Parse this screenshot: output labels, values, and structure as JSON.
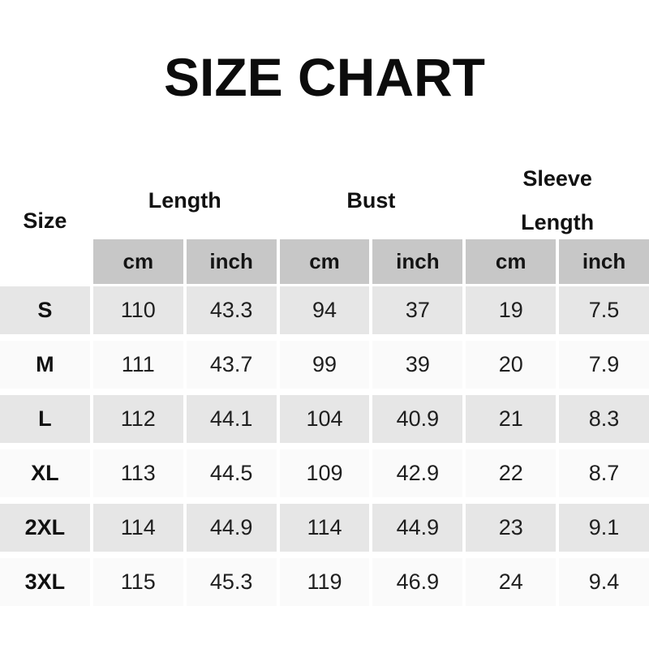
{
  "title": "SIZE CHART",
  "table": {
    "size_header": "Size",
    "group_headers": [
      {
        "label": "Length",
        "line1": "Length",
        "line2": ""
      },
      {
        "label": "Bust",
        "line1": "Bust",
        "line2": ""
      },
      {
        "label": "Sleeve Length",
        "line1": "Sleeve",
        "line2": "Length"
      }
    ],
    "unit_headers": [
      "cm",
      "inch",
      "cm",
      "inch",
      "cm",
      "inch"
    ],
    "rows": [
      {
        "size": "S",
        "values": [
          "110",
          "43.3",
          "94",
          "37",
          "19",
          "7.5"
        ]
      },
      {
        "size": "M",
        "values": [
          "111",
          "43.7",
          "99",
          "39",
          "20",
          "7.9"
        ]
      },
      {
        "size": "L",
        "values": [
          "112",
          "44.1",
          "104",
          "40.9",
          "21",
          "8.3"
        ]
      },
      {
        "size": "XL",
        "values": [
          "113",
          "44.5",
          "109",
          "42.9",
          "22",
          "8.7"
        ]
      },
      {
        "size": "2XL",
        "values": [
          "114",
          "44.9",
          "114",
          "44.9",
          "23",
          "9.1"
        ]
      },
      {
        "size": "3XL",
        "values": [
          "115",
          "45.3",
          "119",
          "46.9",
          "24",
          "9.4"
        ]
      }
    ]
  },
  "colors": {
    "background": "#ffffff",
    "units_header_bg": "#c7c7c7",
    "shaded_row_bg": "#e6e6e6",
    "light_row_bg": "#fafafa",
    "title_text": "#0c0c0c",
    "body_text": "#1f1f1f"
  },
  "chart_data": {
    "type": "table",
    "title": "SIZE CHART",
    "columns": [
      "Size",
      "Length (cm)",
      "Length (inch)",
      "Bust (cm)",
      "Bust (inch)",
      "Sleeve Length (cm)",
      "Sleeve Length (inch)"
    ],
    "rows": [
      [
        "S",
        110,
        43.3,
        94,
        37,
        19,
        7.5
      ],
      [
        "M",
        111,
        43.7,
        99,
        39,
        20,
        7.9
      ],
      [
        "L",
        112,
        44.1,
        104,
        40.9,
        21,
        8.3
      ],
      [
        "XL",
        113,
        44.5,
        109,
        42.9,
        22,
        8.7
      ],
      [
        "2XL",
        114,
        44.9,
        114,
        44.9,
        23,
        9.1
      ],
      [
        "3XL",
        115,
        45.3,
        119,
        46.9,
        24,
        9.4
      ]
    ],
    "layout": {
      "shaded_rows": [
        "S",
        "L",
        "2XL"
      ],
      "units_subheader": true,
      "grid": "white gaps between cells"
    }
  }
}
